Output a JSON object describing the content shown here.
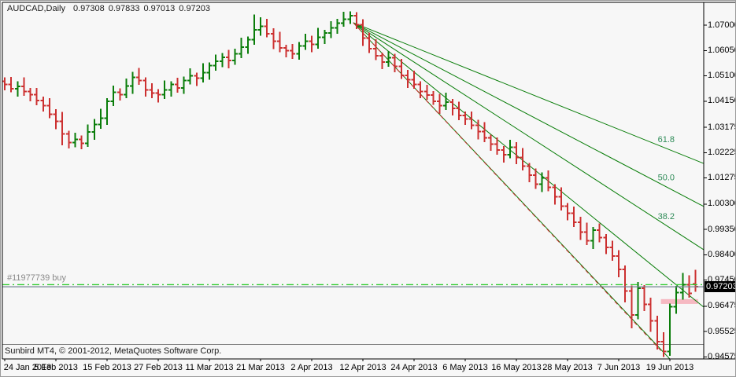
{
  "header": {
    "symbol": "AUDCAD,Daily",
    "open": "0.97308",
    "high": "0.97833",
    "low": "0.97013",
    "close": "0.97203"
  },
  "order_line": {
    "label": "#11977739 buy",
    "price": 0.9728
  },
  "footer": {
    "copyright": "Sunbird MT4, © 2001-2012, MetaQuotes Software Corp."
  },
  "colors": {
    "background": "#f7f7f7",
    "bull": "#0a7d0a",
    "bear": "#cc3030",
    "fan": "#087d08",
    "fan_label": "#2e8b57",
    "buy_line": "#33cc33",
    "bid_line": "#708090",
    "band": "#f6b9c2",
    "axis": "#000000",
    "separator": "#777777",
    "order_text": "#8a8a8a",
    "price_box_bg": "#000000",
    "price_box_text": "#ffffff"
  },
  "chart_data": {
    "type": "ohlc-bar",
    "title": "AUDCAD,Daily",
    "grid": false,
    "legend_position": "none",
    "current_price": 0.97203,
    "current_price_label": "0.97203",
    "ylim": [
      0.9447,
      1.0785
    ],
    "ylabel": "",
    "xlabel": "",
    "y_ticks": [
      "1.07000",
      "1.06050",
      "1.05100",
      "1.04150",
      "1.03175",
      "1.02225",
      "1.01275",
      "1.00300",
      "0.99350",
      "0.98400",
      "0.97450",
      "0.96475",
      "0.95525",
      "0.94575"
    ],
    "x_ticks": [
      "24 Jan 2013",
      "5 Feb 2013",
      "15 Feb 2013",
      "27 Feb 2013",
      "11 Mar 2013",
      "21 Mar 2013",
      "2 Apr 2013",
      "12 Apr 2013",
      "24 Apr 2013",
      "6 May 2013",
      "16 May 2013",
      "28 May 2013",
      "7 Jun 2013",
      "19 Jun 2013"
    ],
    "tick_every": 8,
    "bid_line_price": 0.97203,
    "buy_line_price": 0.9728,
    "band": {
      "from_bar": 102.6,
      "to_bar": 108.4,
      "price_low": 0.9656,
      "price_high": 0.9674
    },
    "fibo_fan": {
      "apex": {
        "bar": 54.5,
        "price": 1.0709
      },
      "lines": [
        {
          "label": "61.8",
          "right_edge_price": 1.0182
        },
        {
          "label": "50.0",
          "right_edge_price": 1.0021
        },
        {
          "label": "38.2",
          "right_edge_price": 0.9859
        },
        {
          "label": "",
          "right_edge_price": 0.9644
        },
        {
          "label": "",
          "right_edge_price": 0.9315
        }
      ]
    },
    "trendline": {
      "from_bar": 54.5,
      "from_price": 1.0709,
      "to_bar": 103,
      "to_price": 0.9471,
      "style": "dashed"
    },
    "bars": [
      [
        1.049,
        1.0505,
        1.0456,
        1.0478
      ],
      [
        1.0478,
        1.0506,
        1.0448,
        1.0462
      ],
      [
        1.0462,
        1.049,
        1.0432,
        1.047
      ],
      [
        1.047,
        1.0505,
        1.0436,
        1.0452
      ],
      [
        1.0452,
        1.0464,
        1.0414,
        1.044
      ],
      [
        1.044,
        1.0465,
        1.04,
        1.0418
      ],
      [
        1.0418,
        1.0433,
        1.0376,
        1.0398
      ],
      [
        1.0398,
        1.0426,
        1.0352,
        1.0366
      ],
      [
        1.0366,
        1.0386,
        1.031,
        1.034
      ],
      [
        1.034,
        1.0375,
        1.025,
        1.0292
      ],
      [
        1.0292,
        1.0304,
        1.0238,
        1.026
      ],
      [
        1.026,
        1.0297,
        1.0242,
        1.0272
      ],
      [
        1.0272,
        1.0287,
        1.0236,
        1.0258
      ],
      [
        1.0258,
        1.0328,
        1.0244,
        1.03
      ],
      [
        1.03,
        1.0348,
        1.027,
        1.0328
      ],
      [
        1.0328,
        1.0387,
        1.0312,
        1.0352
      ],
      [
        1.0352,
        1.0427,
        1.0326,
        1.0415
      ],
      [
        1.0415,
        1.0473,
        1.0397,
        1.0448
      ],
      [
        1.0448,
        1.0463,
        1.0418,
        1.044
      ],
      [
        1.044,
        1.05,
        1.0426,
        1.0472
      ],
      [
        1.0472,
        1.0525,
        1.0442,
        1.0505
      ],
      [
        1.0505,
        1.054,
        1.0476,
        1.0492
      ],
      [
        1.0492,
        1.0504,
        1.0432,
        1.0458
      ],
      [
        1.0458,
        1.0483,
        1.0427,
        1.0445
      ],
      [
        1.0445,
        1.046,
        1.041,
        1.044
      ],
      [
        1.044,
        1.0493,
        1.0424,
        1.0458
      ],
      [
        1.0458,
        1.049,
        1.0432,
        1.0478
      ],
      [
        1.0478,
        1.0503,
        1.0447,
        1.0465
      ],
      [
        1.0465,
        1.0507,
        1.0443,
        1.0492
      ],
      [
        1.0492,
        1.0538,
        1.0478,
        1.051
      ],
      [
        1.051,
        1.0522,
        1.0472,
        1.0502
      ],
      [
        1.0502,
        1.0557,
        1.0486,
        1.0522
      ],
      [
        1.0522,
        1.056,
        1.0496,
        1.0548
      ],
      [
        1.0548,
        1.059,
        1.053,
        1.0565
      ],
      [
        1.0565,
        1.0595,
        1.0543,
        1.058
      ],
      [
        1.058,
        1.0608,
        1.0538,
        1.0568
      ],
      [
        1.0568,
        1.0612,
        1.0552,
        1.0592
      ],
      [
        1.0592,
        1.0653,
        1.0576,
        1.0618
      ],
      [
        1.0618,
        1.0657,
        1.0592,
        1.0645
      ],
      [
        1.0645,
        1.074,
        1.0627,
        1.0682
      ],
      [
        1.0682,
        1.073,
        1.066,
        1.0695
      ],
      [
        1.0695,
        1.0723,
        1.0654,
        1.0668
      ],
      [
        1.0668,
        1.0688,
        1.061,
        1.064
      ],
      [
        1.064,
        1.0675,
        1.0599,
        1.0615
      ],
      [
        1.0615,
        1.0627,
        1.0579,
        1.0605
      ],
      [
        1.0605,
        1.063,
        1.0574,
        1.0592
      ],
      [
        1.0592,
        1.0637,
        1.057,
        1.0622
      ],
      [
        1.0622,
        1.0668,
        1.0608,
        1.064
      ],
      [
        1.064,
        1.066,
        1.0598,
        1.0628
      ],
      [
        1.0628,
        1.069,
        1.0612,
        1.0655
      ],
      [
        1.0655,
        1.0682,
        1.0629,
        1.067
      ],
      [
        1.067,
        1.0715,
        1.0652,
        1.069
      ],
      [
        1.069,
        1.0723,
        1.0668,
        1.0708
      ],
      [
        1.0708,
        1.075,
        1.0694,
        1.0722
      ],
      [
        1.0722,
        1.0752,
        1.0705,
        1.0735
      ],
      [
        1.0735,
        1.0748,
        1.0686,
        1.0702
      ],
      [
        1.0702,
        1.0722,
        1.0622,
        1.0652
      ],
      [
        1.0652,
        1.0672,
        1.0596,
        1.0612
      ],
      [
        1.0612,
        1.0647,
        1.0569,
        1.0585
      ],
      [
        1.0585,
        1.0597,
        1.0536,
        1.0562
      ],
      [
        1.0562,
        1.0603,
        1.0544,
        1.0578
      ],
      [
        1.0578,
        1.0593,
        1.0523,
        1.0545
      ],
      [
        1.0545,
        1.0573,
        1.0498,
        1.0512
      ],
      [
        1.0512,
        1.0532,
        1.0465,
        1.0495
      ],
      [
        1.0495,
        1.053,
        1.0462,
        1.0478
      ],
      [
        1.0478,
        1.049,
        1.0426,
        1.0452
      ],
      [
        1.0452,
        1.0477,
        1.042,
        1.0438
      ],
      [
        1.0438,
        1.0453,
        1.0401,
        1.0415
      ],
      [
        1.0415,
        1.0443,
        1.0368,
        1.0398
      ],
      [
        1.0398,
        1.0447,
        1.0382,
        1.0412
      ],
      [
        1.0412,
        1.0424,
        1.0362,
        1.0388
      ],
      [
        1.0388,
        1.0413,
        1.0344,
        1.0362
      ],
      [
        1.0362,
        1.0377,
        1.0326,
        1.0348
      ],
      [
        1.0348,
        1.0376,
        1.0311,
        1.0325
      ],
      [
        1.0325,
        1.0345,
        1.0272,
        1.0302
      ],
      [
        1.0302,
        1.0337,
        1.0262,
        1.0278
      ],
      [
        1.0278,
        1.029,
        1.0229,
        1.0255
      ],
      [
        1.0255,
        1.028,
        1.0214,
        1.0232
      ],
      [
        1.0232,
        1.0247,
        1.0185,
        1.0215
      ],
      [
        1.0215,
        1.027,
        1.0201,
        1.0242
      ],
      [
        1.0242,
        1.0262,
        1.0179,
        1.0205
      ],
      [
        1.0205,
        1.024,
        1.0156,
        1.0172
      ],
      [
        1.0172,
        1.0184,
        1.0112,
        1.0138
      ],
      [
        1.0138,
        1.0163,
        1.0087,
        1.0105
      ],
      [
        1.0105,
        1.0148,
        1.0075,
        1.0128
      ],
      [
        1.0128,
        1.0156,
        1.0078,
        1.0092
      ],
      [
        1.0092,
        1.0104,
        1.0028,
        1.0058
      ],
      [
        1.0058,
        1.0093,
        1.0006,
        1.0022
      ],
      [
        1.0022,
        1.0034,
        0.9969,
        0.9995
      ],
      [
        0.9995,
        1.002,
        0.9944,
        0.9962
      ],
      [
        0.9962,
        0.9982,
        0.9895,
        0.9925
      ],
      [
        0.9925,
        0.996,
        0.9876,
        0.9892
      ],
      [
        0.9892,
        0.9944,
        0.9862,
        0.9932
      ],
      [
        0.9932,
        0.9957,
        0.9887,
        0.9905
      ],
      [
        0.9905,
        0.9917,
        0.9842,
        0.9868
      ],
      [
        0.9868,
        0.9893,
        0.9817,
        0.9835
      ],
      [
        0.9835,
        0.9857,
        0.9756,
        0.9786
      ],
      [
        0.9786,
        0.98,
        0.9662,
        0.9705
      ],
      [
        0.9705,
        0.9725,
        0.9565,
        0.9615
      ],
      [
        0.9615,
        0.9738,
        0.9599,
        0.9715
      ],
      [
        0.9715,
        0.9727,
        0.9629,
        0.9655
      ],
      [
        0.9655,
        0.968,
        0.9552,
        0.9592
      ],
      [
        0.9592,
        0.9612,
        0.9485,
        0.9515
      ],
      [
        0.9515,
        0.955,
        0.9458,
        0.9478
      ],
      [
        0.9478,
        0.9657,
        0.9462,
        0.9645
      ],
      [
        0.9645,
        0.9723,
        0.9619,
        0.9698
      ],
      [
        0.9698,
        0.9772,
        0.9672,
        0.9728
      ],
      [
        0.9728,
        0.9763,
        0.9679,
        0.9695
      ],
      [
        0.97308,
        0.97833,
        0.97013,
        0.97203
      ]
    ]
  }
}
